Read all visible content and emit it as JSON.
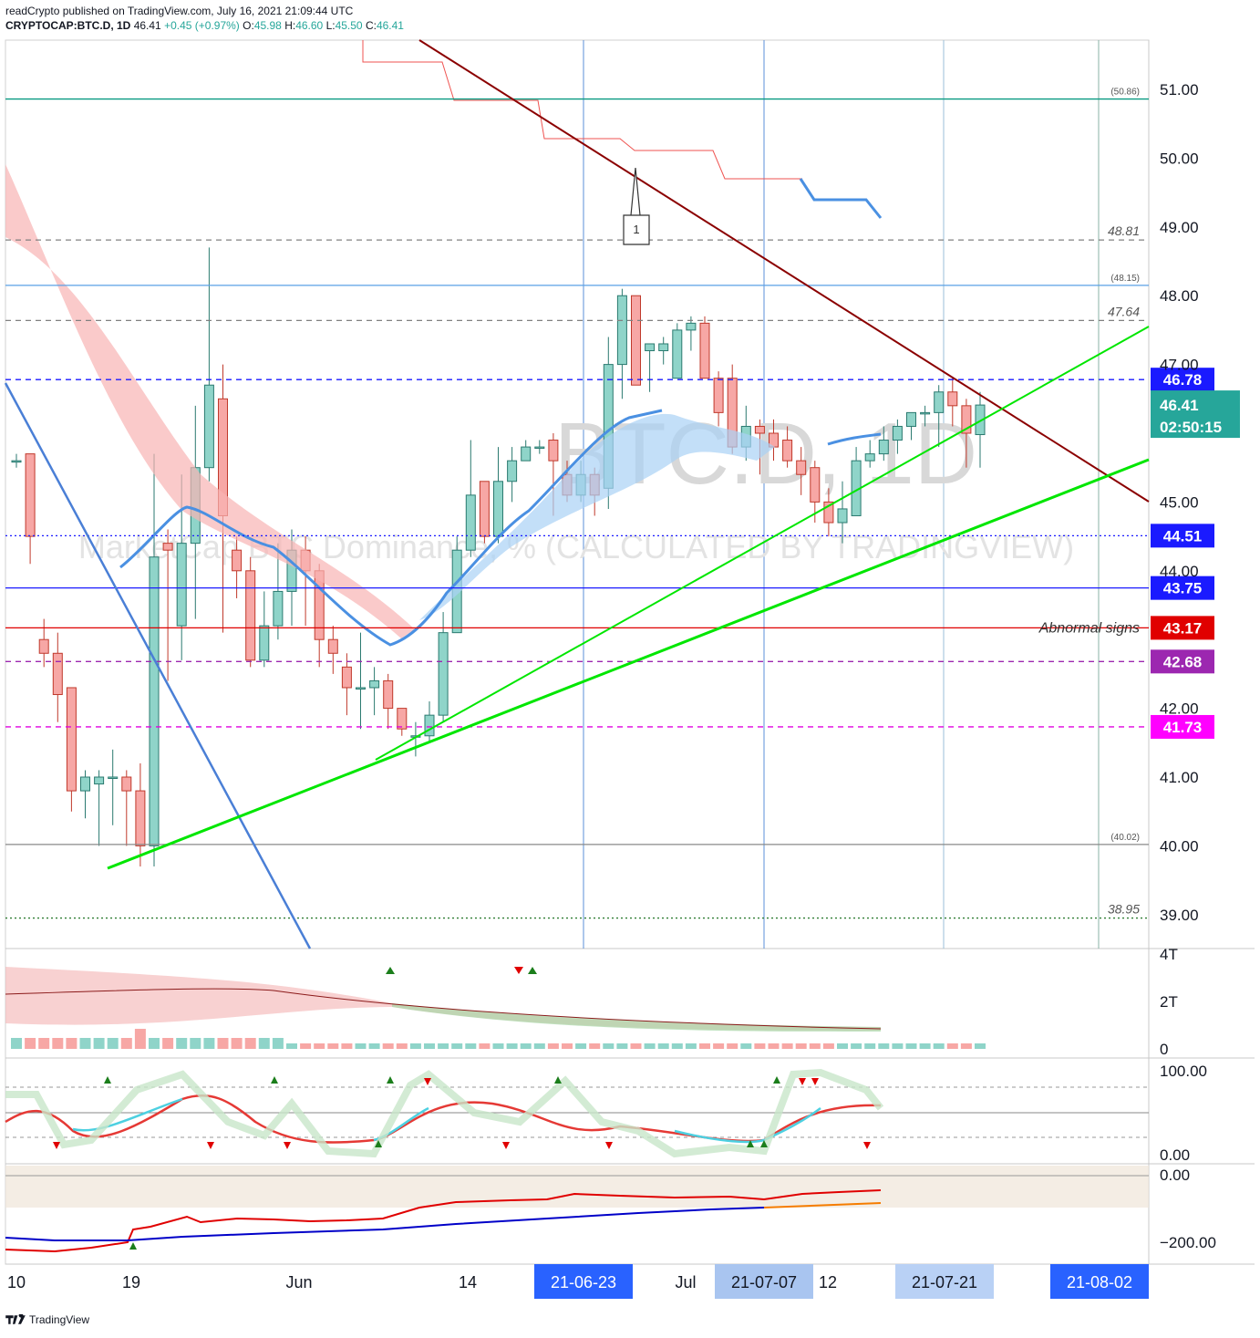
{
  "header": {
    "publisher_line": "readCrypto published on TradingView.com, July 16, 2021 21:09:44 UTC",
    "symbol": "CRYPTOCAP:BTC.D, 1D",
    "last": "46.41",
    "change": "+0.45 (+0.97%)",
    "ohlc": {
      "o_label": "O:",
      "o": "45.98",
      "h_label": "H:",
      "h": "46.60",
      "l_label": "L:",
      "l": "45.50",
      "c_label": "C:",
      "c": "46.41"
    }
  },
  "watermark": {
    "symbol": "BTC.D, 1D",
    "description": "MarketCap BTC Dominance, % (CALCULATED BY TRADINGVIEW)"
  },
  "colors": {
    "up": "#26a69a",
    "down": "#ef5350",
    "accent": "#2962ff",
    "trend_dark": "#8b0000",
    "trend_green": "#00e600"
  },
  "footer": {
    "brand": "TradingView"
  },
  "chart_data": {
    "type": "candlestick",
    "y_axis": {
      "ticks": [
        "51.00",
        "50.00",
        "49.00",
        "48.00",
        "47.00",
        "45.00",
        "44.00",
        "42.00",
        "41.00",
        "40.00",
        "39.00"
      ],
      "range": [
        38.5,
        51.8
      ]
    },
    "x_axis": {
      "labels": [
        "10",
        "19",
        "Jun",
        "14",
        "Jul",
        "12"
      ],
      "highlighted_dates": [
        "21-06-23",
        "21-07-07",
        "21-07-21",
        "21-08-02"
      ]
    },
    "candles": [
      [
        45.6,
        45.6,
        45.7,
        45.5
      ],
      [
        45.7,
        44.5,
        45.7,
        44.1
      ],
      [
        43.0,
        42.8,
        43.3,
        42.6
      ],
      [
        42.8,
        42.2,
        43.1,
        41.8
      ],
      [
        42.3,
        40.8,
        42.3,
        40.5
      ],
      [
        40.8,
        41.0,
        41.1,
        40.4
      ],
      [
        40.9,
        41.0,
        41.1,
        40.0
      ],
      [
        41.0,
        41.0,
        41.4,
        40.3
      ],
      [
        41.0,
        40.8,
        41.1,
        40.0
      ],
      [
        40.8,
        40.0,
        41.2,
        39.7
      ],
      [
        40.0,
        44.2,
        45.7,
        39.7
      ],
      [
        44.4,
        44.3,
        44.6,
        42.4
      ],
      [
        43.2,
        44.4,
        45.4,
        42.7
      ],
      [
        44.4,
        45.5,
        46.4,
        43.3
      ],
      [
        45.5,
        46.7,
        48.7,
        45.3
      ],
      [
        46.5,
        44.8,
        47.0,
        43.1
      ],
      [
        44.3,
        44.0,
        44.5,
        43.6
      ],
      [
        44.0,
        42.7,
        44.2,
        42.6
      ],
      [
        42.7,
        43.2,
        43.7,
        42.6
      ],
      [
        43.2,
        43.7,
        44.4,
        43.0
      ],
      [
        43.7,
        44.3,
        44.6,
        43.2
      ],
      [
        44.3,
        44.0,
        44.5,
        43.2
      ],
      [
        44.0,
        43.0,
        44.1,
        42.6
      ],
      [
        43.0,
        42.8,
        43.2,
        42.5
      ],
      [
        42.6,
        42.3,
        42.8,
        41.9
      ],
      [
        42.3,
        42.3,
        43.1,
        41.7
      ],
      [
        42.3,
        42.4,
        42.6,
        41.9
      ],
      [
        42.4,
        42.0,
        42.5,
        41.7
      ],
      [
        42.0,
        41.7,
        42.0,
        41.6
      ],
      [
        41.6,
        41.6,
        41.8,
        41.3
      ],
      [
        41.6,
        41.9,
        42.1,
        41.5
      ],
      [
        41.9,
        43.1,
        43.4,
        41.8
      ],
      [
        43.1,
        44.3,
        44.5,
        43.1
      ],
      [
        44.3,
        45.1,
        45.9,
        44.2
      ],
      [
        45.3,
        44.5,
        45.3,
        44.4
      ],
      [
        44.5,
        45.3,
        45.8,
        44.4
      ],
      [
        45.3,
        45.6,
        45.8,
        45.0
      ],
      [
        45.6,
        45.8,
        45.9,
        45.7
      ],
      [
        45.8,
        45.8,
        45.9,
        45.7
      ],
      [
        45.9,
        45.6,
        46.0,
        44.8
      ],
      [
        45.4,
        45.1,
        45.6,
        45.0
      ],
      [
        45.1,
        45.4,
        45.6,
        45.0
      ],
      [
        45.4,
        45.1,
        45.5,
        44.8
      ],
      [
        45.2,
        47.0,
        47.4,
        44.9
      ],
      [
        47.0,
        48.0,
        48.1,
        46.5
      ],
      [
        48.0,
        46.7,
        48.0,
        46.7
      ],
      [
        47.2,
        47.3,
        47.3,
        46.6
      ],
      [
        47.2,
        47.3,
        47.4,
        47.0
      ],
      [
        46.8,
        47.5,
        47.6,
        46.8
      ],
      [
        47.5,
        47.6,
        47.7,
        47.2
      ],
      [
        47.6,
        46.8,
        47.7,
        46.8
      ],
      [
        46.8,
        46.3,
        46.9,
        46.1
      ],
      [
        46.8,
        45.8,
        47.0,
        45.7
      ],
      [
        45.8,
        46.1,
        46.4,
        45.6
      ],
      [
        46.1,
        46.0,
        46.2,
        45.4
      ],
      [
        46.0,
        45.8,
        46.2,
        45.6
      ],
      [
        45.9,
        45.6,
        46.1,
        45.5
      ],
      [
        45.6,
        45.4,
        45.8,
        45.1
      ],
      [
        45.5,
        45.0,
        45.6,
        44.7
      ],
      [
        45.0,
        44.7,
        45.2,
        44.5
      ],
      [
        44.7,
        44.9,
        45.3,
        44.4
      ],
      [
        44.8,
        45.6,
        45.8,
        44.8
      ],
      [
        45.6,
        45.7,
        45.9,
        45.5
      ],
      [
        45.7,
        45.9,
        46.1,
        45.6
      ],
      [
        45.9,
        46.1,
        46.2,
        45.7
      ],
      [
        46.1,
        46.3,
        46.3,
        45.9
      ],
      [
        46.3,
        46.3,
        46.4,
        46.1
      ],
      [
        46.3,
        46.6,
        46.7,
        45.8
      ],
      [
        46.6,
        46.4,
        46.8,
        46.1
      ],
      [
        46.4,
        46.0,
        46.5,
        45.5
      ],
      [
        45.98,
        46.41,
        46.6,
        45.5
      ]
    ],
    "horizontal_levels": [
      {
        "value": 50.86,
        "label": "(50.86)",
        "color": "#089981",
        "style": "solid"
      },
      {
        "value": 48.81,
        "label": "48.81",
        "color": "#808080",
        "style": "dashed"
      },
      {
        "value": 48.15,
        "label": "(48.15)",
        "color": "#5aa0e6",
        "style": "solid"
      },
      {
        "value": 47.64,
        "label": "47.64",
        "color": "#808080",
        "style": "dashed"
      },
      {
        "value": 46.78,
        "label": "46.78",
        "color": "#1a1aff",
        "badge": "#1a1aff",
        "style": "dashed"
      },
      {
        "value": 44.51,
        "label": "44.51",
        "color": "#1a1aff",
        "badge": "#1a1aff",
        "style": "dotted"
      },
      {
        "value": 43.75,
        "label": "43.75",
        "color": "#1a1aff",
        "badge": "#1a1aff",
        "style": "solid"
      },
      {
        "value": 43.17,
        "label": "43.17",
        "color": "#e00000",
        "badge": "#e00000",
        "style": "solid",
        "note": "Abnormal signs"
      },
      {
        "value": 42.68,
        "label": "42.68",
        "color": "#9c27b0",
        "badge": "#9c27b0",
        "style": "dashed"
      },
      {
        "value": 41.73,
        "label": "41.73",
        "color": "#e000e0",
        "badge": "#ff00ff",
        "style": "dashed"
      },
      {
        "value": 40.02,
        "label": "(40.02)",
        "color": "#888888",
        "style": "solid"
      },
      {
        "value": 38.95,
        "label": "38.95",
        "color": "#2e7d32",
        "style": "dotted"
      }
    ],
    "last_price": {
      "value": "46.41",
      "countdown": "02:50:15"
    },
    "annotation": "1",
    "panes": {
      "volume": {
        "ticks": [
          "4T",
          "2T",
          "0"
        ]
      },
      "oscillator": {
        "ticks": [
          "100.00",
          "0.00"
        ]
      },
      "lower": {
        "ticks": [
          "0.00",
          "−200.00"
        ]
      }
    }
  }
}
